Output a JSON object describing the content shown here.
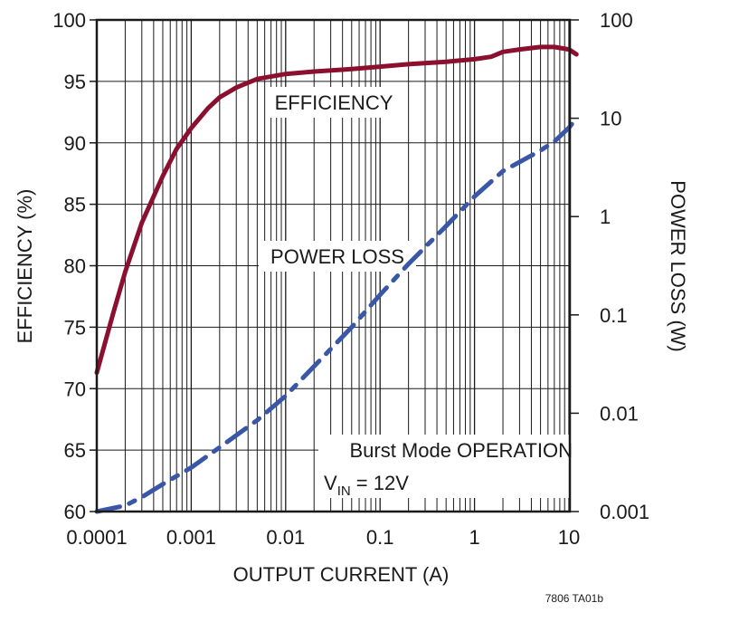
{
  "chart_data": {
    "type": "line",
    "title": "",
    "xlabel": "OUTPUT CURRENT (A)",
    "ylabel_left": "EFFICIENCY (%)",
    "ylabel_right": "POWER LOSS (W)",
    "x_scale": "log",
    "xlim": [
      0.0001,
      15
    ],
    "ylim_left": [
      60,
      100
    ],
    "y2_scale": "log",
    "ylim_right": [
      0.001,
      100
    ],
    "grid": true,
    "x_ticks": [
      "0.0001",
      "0.001",
      "0.01",
      "0.1",
      "1",
      "10"
    ],
    "y_left_ticks": [
      "60",
      "65",
      "70",
      "75",
      "80",
      "85",
      "90",
      "95",
      "100"
    ],
    "y_right_ticks": [
      "0.001",
      "0.01",
      "0.1",
      "1",
      "10",
      "100"
    ],
    "series": [
      {
        "name": "EFFICIENCY",
        "axis": "left",
        "color": "#8b1030",
        "style": "solid",
        "x": [
          0.0001,
          0.00015,
          0.0002,
          0.0003,
          0.0005,
          0.0007,
          0.001,
          0.0015,
          0.002,
          0.003,
          0.005,
          0.01,
          0.02,
          0.05,
          0.1,
          0.2,
          0.5,
          1,
          1.5,
          2,
          3,
          5,
          7,
          10,
          12
        ],
        "y": [
          71.3,
          76.2,
          79.5,
          83.5,
          87.3,
          89.5,
          91.2,
          92.8,
          93.7,
          94.5,
          95.2,
          95.6,
          95.8,
          96.0,
          96.2,
          96.4,
          96.6,
          96.8,
          97.0,
          97.4,
          97.6,
          97.8,
          97.8,
          97.6,
          97.2
        ]
      },
      {
        "name": "POWER LOSS",
        "axis": "right",
        "color": "#3a56a6",
        "style": "dashed",
        "x": [
          0.0001,
          0.0002,
          0.0003,
          0.0005,
          0.001,
          0.002,
          0.005,
          0.01,
          0.02,
          0.05,
          0.1,
          0.2,
          0.5,
          1,
          2,
          5,
          7,
          10,
          12
        ],
        "y": [
          0.001,
          0.00115,
          0.0014,
          0.0019,
          0.0028,
          0.0045,
          0.0085,
          0.015,
          0.03,
          0.075,
          0.16,
          0.33,
          0.8,
          1.6,
          2.9,
          4.7,
          5.8,
          8.0,
          10.0
        ]
      }
    ],
    "annotations": {
      "efficiency_label": "EFFICIENCY",
      "power_loss_label": "POWER LOSS",
      "burst_line1": "Burst Mode OPERATION",
      "vin_main": "V",
      "vin_sub": "IN",
      "vin_value": " = 12V"
    },
    "footnote": "7806 TA01b"
  }
}
